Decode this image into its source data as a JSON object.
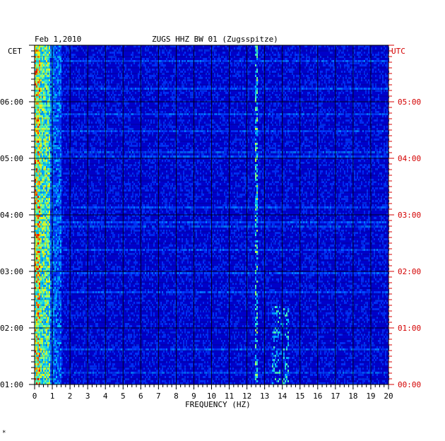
{
  "header": {
    "date": "Feb 1,2010",
    "station": "ZUGS HHZ BW 01 (Zugsspitze)"
  },
  "left_axis": {
    "timezone": "CET",
    "ticks": [
      "06:00",
      "05:00",
      "04:00",
      "03:00",
      "02:00",
      "01:00"
    ]
  },
  "right_axis": {
    "timezone": "UTC",
    "ticks": [
      "05:00",
      "04:00",
      "03:00",
      "02:00",
      "01:00",
      "00:00"
    ]
  },
  "footer": {
    "corner_mark": "*"
  },
  "colors": {
    "background": "#0000c8",
    "grid": "#000000",
    "utc_label": "#d40000"
  },
  "chart_data": {
    "type": "heatmap",
    "title": "ZUGS HHZ BW 01 (Zugsspitze)",
    "xlabel": "FREQUENCY (HZ)",
    "ylabel": "",
    "x_ticks": [
      "0",
      "1",
      "2",
      "3",
      "4",
      "5",
      "6",
      "7",
      "8",
      "9",
      "10",
      "11",
      "12",
      "13",
      "14",
      "15",
      "16",
      "17",
      "18",
      "19",
      "20"
    ],
    "xlim": [
      0,
      20
    ],
    "y_time_range_cet": [
      "01:00",
      "07:00"
    ],
    "y_time_range_utc": [
      "00:00",
      "06:00"
    ],
    "colorscale": [
      "dark blue",
      "blue",
      "cyan",
      "yellow",
      "red"
    ],
    "features": [
      {
        "name": "microseism",
        "freq_range_hz": [
          0,
          0.8
        ],
        "intensity": "high"
      },
      {
        "name": "narrow band",
        "freq_hz": 12.5,
        "intensity": "medium"
      },
      {
        "name": "narrow band",
        "freq_range_hz": [
          13.5,
          14.2
        ],
        "intensity": "medium"
      }
    ],
    "grid": true
  }
}
